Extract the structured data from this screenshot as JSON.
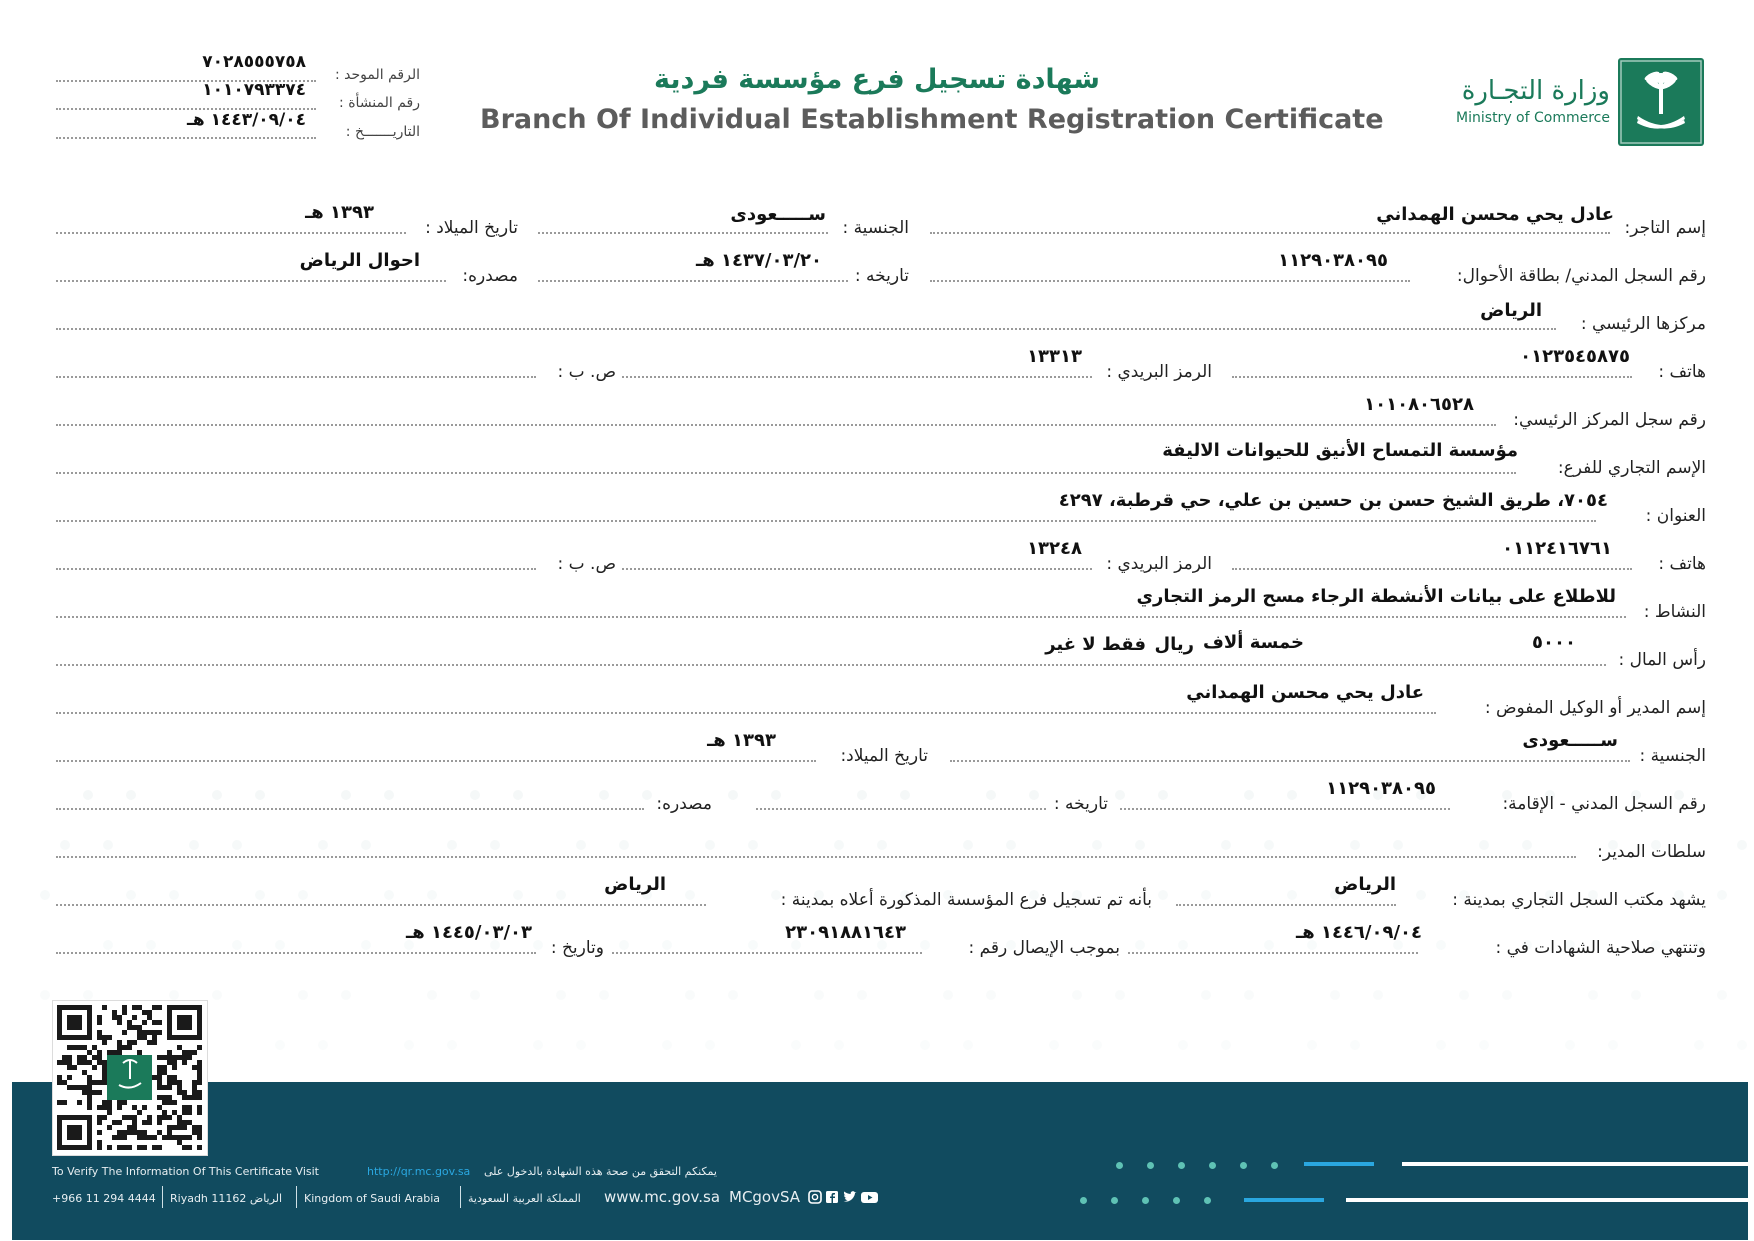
{
  "header": {
    "ministry_ar": "وزارة التجـارة",
    "ministry_en": "Ministry of Commerce",
    "title_ar": "شهادة تسجيل فرع مؤسسة فردية",
    "title_en": "Branch Of Individual Establishment Registration Certificate",
    "unified_number_label": "الرقم الموحد :",
    "unified_number": "٧٠٢٨٥٥٥٧٥٨",
    "establishment_number_label": "رقم المنشأة :",
    "establishment_number": "١٠١٠٧٩٣٣٧٤",
    "date_label": "التاريـــــــخ :",
    "date": "١٤٤٣/٠٩/٠٤ هـ"
  },
  "fields": {
    "merchant_name_label": "إسم التاجر:",
    "merchant_name": "عادل يحي محسن الهمداني",
    "nationality_label": "الجنسية :",
    "nationality": "ســـــعودى",
    "birth_date_label": "تاريخ الميلاد :",
    "birth_date": "١٣٩٣ هـ",
    "civil_id_label": "رقم السجل المدني/ بطاقة الأحوال:",
    "civil_id": "١١٢٩٠٣٨٠٩٥",
    "id_date_label": "تاريخه :",
    "id_date": "١٤٣٧/٠٣/٢٠ هـ",
    "id_source_label": "مصدره:",
    "id_source": "احوال الرياض",
    "hq_label": "مركزها الرئيسي :",
    "hq": "الرياض",
    "phone1_label": "هاتف :",
    "phone1": "٠١٢٣٥٤٥٨٧٥",
    "postal1_label": "الرمز البريدي :",
    "postal1": "١٣٣١٣",
    "pobox1_label": "ص. ب :",
    "hq_cr_label": "رقم سجل المركز الرئيسي:",
    "hq_cr": "١٠١٠٨٠٦٥٢٨",
    "trade_name_label": "الإسم التجاري للفرع:",
    "trade_name": "مؤسسة التمساح الأنيق للحيوانات الاليفة",
    "address_label": "العنوان :",
    "address": "٧٠٥٤، طريق الشيخ حسن بن حسين بن علي، حي قرطبة، ٤٢٩٧",
    "phone2_label": "هاتف :",
    "phone2": "٠١١٢٤١٦٧٦١",
    "postal2_label": "الرمز البريدي :",
    "postal2": "١٣٢٤٨",
    "pobox2_label": "ص. ب :",
    "activity_label": "النشاط :",
    "activity": "للاطلاع على بيانات الأنشطة الرجاء مسح الرمز التجاري",
    "capital_label": "رأس المال :",
    "capital_amount": "٥٠٠٠",
    "capital_words": "خمسة ألاف",
    "capital_currency": "ريال",
    "capital_suffix": "فقط لا غير",
    "manager_label": "إسم المدير أو الوكيل المفوض :",
    "manager_name": "عادل يحي محسن الهمداني",
    "manager_nationality_label": "الجنسية :",
    "manager_nationality": "ســـــعودى",
    "manager_birth_label": "تاريخ الميلاد:",
    "manager_birth": "١٣٩٣ هـ",
    "manager_id_label": "رقم السجل المدني - الإقامة:",
    "manager_id": "١١٢٩٠٣٨٠٩٥",
    "manager_id_date_label": "تاريخه :",
    "manager_id_source_label": "مصدره:",
    "manager_powers_label": "سلطات المدير:",
    "office_label": "يشهد مكتب السجل التجاري بمدينة :",
    "office_city": "الرياض",
    "registered_label": "بأنه تم تسجيل فرع المؤسسة المذكورة أعلاه بمدينة :",
    "registered_city": "الرياض",
    "validity_label": "وتنتهي صلاحية الشهادات في :",
    "validity_date": "١٤٤٦/٠٩/٠٤ هـ",
    "receipt_label": "بموجب الإيصال رقم :",
    "receipt_number": "٢٣٠٩١٨٨١٦٤٣",
    "receipt_date_label": "وتاريخ :",
    "receipt_date": "١٤٤٥/٠٣/٠٣ هـ"
  },
  "footer": {
    "verify_en": "To Verify The Information Of This Certificate Visit",
    "verify_url": "http://qr.mc.gov.sa",
    "verify_ar": "يمكنكم التحقق من صحة هذه الشهادة بالدخول على",
    "phone": "+966 11 294 4444",
    "city": "Riyadh 11162 الرياض",
    "country_en": "Kingdom of Saudi Arabia",
    "country_ar": "المملكة العربية السعودية",
    "website": "www.mc.gov.sa",
    "social": "MCgovSA",
    "social_icons": [
      "instagram-icon",
      "facebook-icon",
      "twitter-icon",
      "youtube-icon"
    ]
  },
  "colors": {
    "brand_green": "#1b7a5a",
    "footer_band": "#114b5f",
    "accent_teal": "#5fc2b5",
    "link_blue": "#2aa7e0"
  }
}
